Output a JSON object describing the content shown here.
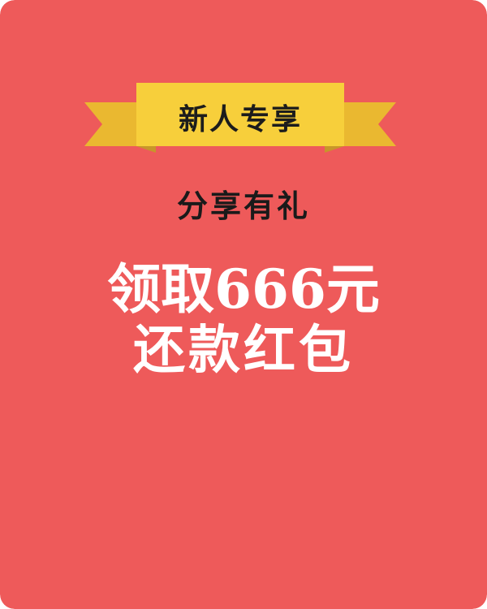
{
  "colors": {
    "background": "#ee5a5a",
    "ribbon_main": "#f7cf3b",
    "ribbon_tail": "#eab830",
    "ribbon_shadow": "#c8962a"
  },
  "ribbon": {
    "label": "新人专享"
  },
  "subtitle": "分享有礼",
  "promo": {
    "line1": "领取666元",
    "line2": "还款红包"
  }
}
